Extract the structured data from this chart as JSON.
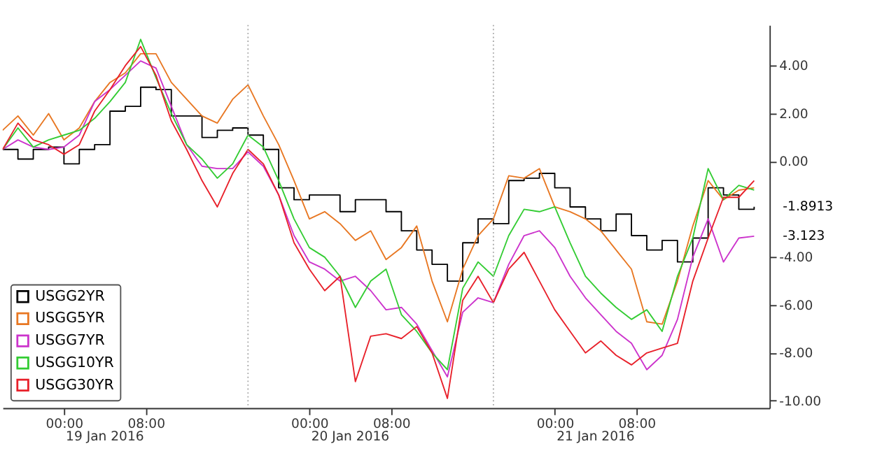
{
  "chart_data": {
    "type": "line",
    "x": [
      "2016-01-18T18:00",
      "2016-01-18T19:30",
      "2016-01-18T21:00",
      "2016-01-18T22:30",
      "2016-01-19T00:00",
      "2016-01-19T01:30",
      "2016-01-19T03:00",
      "2016-01-19T04:30",
      "2016-01-19T06:00",
      "2016-01-19T07:30",
      "2016-01-19T09:00",
      "2016-01-19T10:30",
      "2016-01-19T12:00",
      "2016-01-19T13:30",
      "2016-01-19T15:00",
      "2016-01-19T16:30",
      "2016-01-19T18:00",
      "2016-01-19T19:30",
      "2016-01-19T21:00",
      "2016-01-19T22:30",
      "2016-01-20T00:00",
      "2016-01-20T01:30",
      "2016-01-20T03:00",
      "2016-01-20T04:30",
      "2016-01-20T06:00",
      "2016-01-20T07:30",
      "2016-01-20T09:00",
      "2016-01-20T10:30",
      "2016-01-20T12:00",
      "2016-01-20T13:30",
      "2016-01-20T15:00",
      "2016-01-20T16:30",
      "2016-01-20T18:00",
      "2016-01-20T19:30",
      "2016-01-20T21:00",
      "2016-01-20T22:30",
      "2016-01-21T00:00",
      "2016-01-21T01:30",
      "2016-01-21T03:00",
      "2016-01-21T04:30",
      "2016-01-21T06:00",
      "2016-01-21T07:30",
      "2016-01-21T09:00",
      "2016-01-21T10:30",
      "2016-01-21T12:00",
      "2016-01-21T13:30",
      "2016-01-21T15:00",
      "2016-01-21T16:30",
      "2016-01-21T18:00",
      "2016-01-21T19:30"
    ],
    "series": [
      {
        "name": "USGG2YR",
        "color": "#000000",
        "type": "step",
        "values": [
          0.5,
          0.1,
          0.5,
          0.6,
          -0.1,
          0.5,
          0.7,
          2.1,
          2.3,
          3.1,
          3.0,
          1.9,
          1.9,
          1.0,
          1.3,
          1.4,
          1.1,
          0.5,
          -1.1,
          -1.6,
          -1.4,
          -1.4,
          -2.1,
          -1.6,
          -1.6,
          -2.1,
          -2.9,
          -3.7,
          -4.3,
          -5.0,
          -3.4,
          -2.4,
          -2.6,
          -0.8,
          -0.7,
          -0.5,
          -1.1,
          -1.9,
          -2.4,
          -2.9,
          -2.2,
          -3.1,
          -3.7,
          -3.3,
          -4.2,
          -3.2,
          -1.1,
          -1.4,
          -2.0,
          -1.8913
        ]
      },
      {
        "name": "USGG5YR",
        "color": "#e87722",
        "values": [
          1.3,
          1.9,
          1.1,
          2.0,
          0.9,
          1.4,
          2.5,
          3.3,
          3.7,
          4.5,
          4.5,
          3.3,
          2.6,
          1.9,
          1.6,
          2.6,
          3.2,
          1.9,
          0.7,
          -0.8,
          -2.4,
          -2.1,
          -2.6,
          -3.3,
          -2.9,
          -4.1,
          -3.6,
          -2.7,
          -5.0,
          -6.7,
          -4.5,
          -3.1,
          -2.4,
          -0.6,
          -0.7,
          -0.3,
          -1.9,
          -2.1,
          -2.4,
          -2.9,
          -3.7,
          -4.5,
          -6.7,
          -6.8,
          -5.0,
          -2.7,
          -0.8,
          -1.6,
          -1.2,
          -1.1
        ]
      },
      {
        "name": "USGG7YR",
        "color": "#cc33cc",
        "values": [
          0.5,
          0.9,
          0.6,
          0.5,
          0.6,
          1.1,
          2.5,
          3.0,
          3.6,
          4.2,
          3.9,
          2.3,
          0.7,
          -0.2,
          -0.3,
          -0.3,
          0.4,
          -0.2,
          -1.4,
          -3.1,
          -4.2,
          -4.5,
          -5.0,
          -4.8,
          -5.4,
          -6.2,
          -6.1,
          -6.8,
          -7.9,
          -9.0,
          -6.3,
          -5.7,
          -5.9,
          -4.3,
          -3.1,
          -2.9,
          -3.6,
          -4.8,
          -5.7,
          -6.4,
          -7.1,
          -7.6,
          -8.7,
          -8.1,
          -6.6,
          -4.0,
          -2.4,
          -4.2,
          -3.2,
          -3.123
        ]
      },
      {
        "name": "USGG10YR",
        "color": "#33cc33",
        "values": [
          0.5,
          1.4,
          0.6,
          0.9,
          1.1,
          1.3,
          1.8,
          2.5,
          3.3,
          5.1,
          3.5,
          2.0,
          0.7,
          0.1,
          -0.7,
          -0.1,
          1.1,
          0.6,
          -0.8,
          -2.4,
          -3.6,
          -4.0,
          -4.8,
          -6.1,
          -5.0,
          -4.5,
          -6.4,
          -7.1,
          -8.0,
          -8.7,
          -5.3,
          -4.2,
          -4.8,
          -3.1,
          -2.0,
          -2.1,
          -1.9,
          -3.4,
          -4.8,
          -5.5,
          -6.1,
          -6.6,
          -6.2,
          -7.1,
          -4.8,
          -3.2,
          -0.3,
          -1.6,
          -1.0,
          -1.2
        ]
      },
      {
        "name": "USGG30YR",
        "color": "#e8202a",
        "values": [
          0.5,
          1.6,
          0.9,
          0.7,
          0.3,
          0.7,
          2.1,
          3.0,
          4.0,
          4.8,
          3.6,
          1.7,
          0.5,
          -0.8,
          -1.9,
          -0.5,
          0.5,
          -0.1,
          -1.4,
          -3.4,
          -4.5,
          -5.4,
          -4.8,
          -9.2,
          -7.3,
          -7.2,
          -7.4,
          -6.9,
          -8.0,
          -9.9,
          -5.8,
          -4.8,
          -5.9,
          -4.5,
          -3.8,
          -5.0,
          -6.2,
          -7.1,
          -8.0,
          -7.5,
          -8.1,
          -8.5,
          -8.0,
          -7.8,
          -7.6,
          -5.0,
          -3.2,
          -1.5,
          -1.5,
          -0.8
        ]
      }
    ],
    "xlim": [
      "2016-01-18T18:00",
      "2016-01-21T21:00"
    ],
    "xticks": [
      {
        "value": "2016-01-19T00:00",
        "label": "00:00"
      },
      {
        "value": "2016-01-19T08:00",
        "label": "08:00"
      },
      {
        "value": "2016-01-20T00:00",
        "label": "00:00"
      },
      {
        "value": "2016-01-20T08:00",
        "label": "08:00"
      },
      {
        "value": "2016-01-21T00:00",
        "label": "00:00"
      },
      {
        "value": "2016-01-21T08:00",
        "label": "08:00"
      }
    ],
    "ylim": [
      -10.3,
      5.7
    ],
    "yticks": [
      {
        "value": 4,
        "label": "4.00"
      },
      {
        "value": 2,
        "label": "2.00"
      },
      {
        "value": 0,
        "label": "0.00"
      },
      {
        "value": -4,
        "label": "-4.00"
      },
      {
        "value": -6,
        "label": "-6.00"
      },
      {
        "value": -8,
        "label": "-8.00"
      },
      {
        "value": -10,
        "label": "-10.00"
      }
    ],
    "ref_lines": [
      {
        "axis": "x",
        "value": "2016-01-19T18:00",
        "color": "#aaaaaa",
        "line_style": "dotted"
      },
      {
        "axis": "x",
        "value": "2016-01-20T18:00",
        "color": "#aaaaaa",
        "line_style": "dotted"
      }
    ],
    "annotations": [
      {
        "text": "-1.8913",
        "x": "2016-01-21T19:30",
        "y": -1.8913
      },
      {
        "text": "-3.123",
        "x": "2016-01-21T19:30",
        "y": -3.123
      },
      "19 Jan 2016",
      "20 Jan 2016",
      "21 Jan 2016"
    ],
    "legend": "bottom left",
    "grid": false
  }
}
